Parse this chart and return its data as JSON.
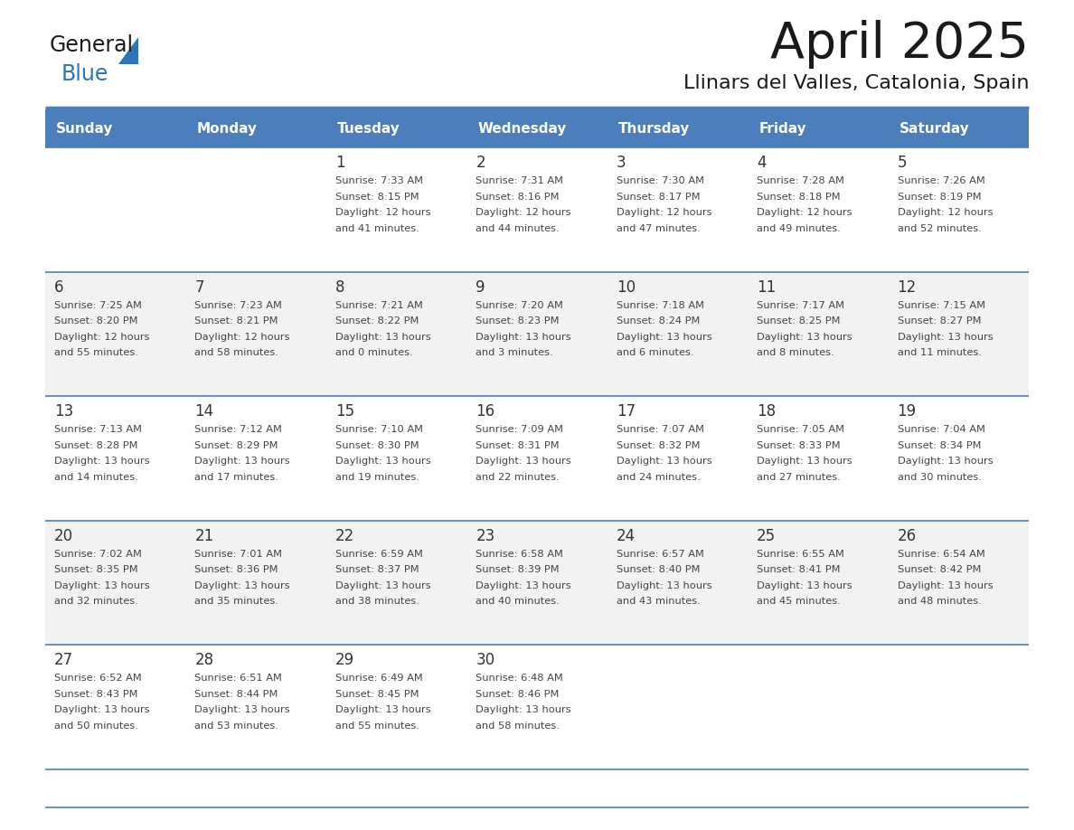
{
  "title": "April 2025",
  "subtitle": "Llinars del Valles, Catalonia, Spain",
  "days_of_week": [
    "Sunday",
    "Monday",
    "Tuesday",
    "Wednesday",
    "Thursday",
    "Friday",
    "Saturday"
  ],
  "header_bg": "#4C7EBC",
  "header_text_color": "#FFFFFF",
  "cell_bg_white": "#FFFFFF",
  "cell_bg_gray": "#F2F2F2",
  "row_border_color": "#4C7EBC",
  "day_number_color": "#333333",
  "cell_text_color": "#444444",
  "title_color": "#1a1a1a",
  "subtitle_color": "#1a1a1a",
  "logo_general_color": "#1a1a1a",
  "logo_blue_color": "#2E75B6",
  "weeks": [
    [
      {
        "day": null,
        "info": ""
      },
      {
        "day": null,
        "info": ""
      },
      {
        "day": 1,
        "info": "Sunrise: 7:33 AM\nSunset: 8:15 PM\nDaylight: 12 hours\nand 41 minutes."
      },
      {
        "day": 2,
        "info": "Sunrise: 7:31 AM\nSunset: 8:16 PM\nDaylight: 12 hours\nand 44 minutes."
      },
      {
        "day": 3,
        "info": "Sunrise: 7:30 AM\nSunset: 8:17 PM\nDaylight: 12 hours\nand 47 minutes."
      },
      {
        "day": 4,
        "info": "Sunrise: 7:28 AM\nSunset: 8:18 PM\nDaylight: 12 hours\nand 49 minutes."
      },
      {
        "day": 5,
        "info": "Sunrise: 7:26 AM\nSunset: 8:19 PM\nDaylight: 12 hours\nand 52 minutes."
      }
    ],
    [
      {
        "day": 6,
        "info": "Sunrise: 7:25 AM\nSunset: 8:20 PM\nDaylight: 12 hours\nand 55 minutes."
      },
      {
        "day": 7,
        "info": "Sunrise: 7:23 AM\nSunset: 8:21 PM\nDaylight: 12 hours\nand 58 minutes."
      },
      {
        "day": 8,
        "info": "Sunrise: 7:21 AM\nSunset: 8:22 PM\nDaylight: 13 hours\nand 0 minutes."
      },
      {
        "day": 9,
        "info": "Sunrise: 7:20 AM\nSunset: 8:23 PM\nDaylight: 13 hours\nand 3 minutes."
      },
      {
        "day": 10,
        "info": "Sunrise: 7:18 AM\nSunset: 8:24 PM\nDaylight: 13 hours\nand 6 minutes."
      },
      {
        "day": 11,
        "info": "Sunrise: 7:17 AM\nSunset: 8:25 PM\nDaylight: 13 hours\nand 8 minutes."
      },
      {
        "day": 12,
        "info": "Sunrise: 7:15 AM\nSunset: 8:27 PM\nDaylight: 13 hours\nand 11 minutes."
      }
    ],
    [
      {
        "day": 13,
        "info": "Sunrise: 7:13 AM\nSunset: 8:28 PM\nDaylight: 13 hours\nand 14 minutes."
      },
      {
        "day": 14,
        "info": "Sunrise: 7:12 AM\nSunset: 8:29 PM\nDaylight: 13 hours\nand 17 minutes."
      },
      {
        "day": 15,
        "info": "Sunrise: 7:10 AM\nSunset: 8:30 PM\nDaylight: 13 hours\nand 19 minutes."
      },
      {
        "day": 16,
        "info": "Sunrise: 7:09 AM\nSunset: 8:31 PM\nDaylight: 13 hours\nand 22 minutes."
      },
      {
        "day": 17,
        "info": "Sunrise: 7:07 AM\nSunset: 8:32 PM\nDaylight: 13 hours\nand 24 minutes."
      },
      {
        "day": 18,
        "info": "Sunrise: 7:05 AM\nSunset: 8:33 PM\nDaylight: 13 hours\nand 27 minutes."
      },
      {
        "day": 19,
        "info": "Sunrise: 7:04 AM\nSunset: 8:34 PM\nDaylight: 13 hours\nand 30 minutes."
      }
    ],
    [
      {
        "day": 20,
        "info": "Sunrise: 7:02 AM\nSunset: 8:35 PM\nDaylight: 13 hours\nand 32 minutes."
      },
      {
        "day": 21,
        "info": "Sunrise: 7:01 AM\nSunset: 8:36 PM\nDaylight: 13 hours\nand 35 minutes."
      },
      {
        "day": 22,
        "info": "Sunrise: 6:59 AM\nSunset: 8:37 PM\nDaylight: 13 hours\nand 38 minutes."
      },
      {
        "day": 23,
        "info": "Sunrise: 6:58 AM\nSunset: 8:39 PM\nDaylight: 13 hours\nand 40 minutes."
      },
      {
        "day": 24,
        "info": "Sunrise: 6:57 AM\nSunset: 8:40 PM\nDaylight: 13 hours\nand 43 minutes."
      },
      {
        "day": 25,
        "info": "Sunrise: 6:55 AM\nSunset: 8:41 PM\nDaylight: 13 hours\nand 45 minutes."
      },
      {
        "day": 26,
        "info": "Sunrise: 6:54 AM\nSunset: 8:42 PM\nDaylight: 13 hours\nand 48 minutes."
      }
    ],
    [
      {
        "day": 27,
        "info": "Sunrise: 6:52 AM\nSunset: 8:43 PM\nDaylight: 13 hours\nand 50 minutes."
      },
      {
        "day": 28,
        "info": "Sunrise: 6:51 AM\nSunset: 8:44 PM\nDaylight: 13 hours\nand 53 minutes."
      },
      {
        "day": 29,
        "info": "Sunrise: 6:49 AM\nSunset: 8:45 PM\nDaylight: 13 hours\nand 55 minutes."
      },
      {
        "day": 30,
        "info": "Sunrise: 6:48 AM\nSunset: 8:46 PM\nDaylight: 13 hours\nand 58 minutes."
      },
      {
        "day": null,
        "info": ""
      },
      {
        "day": null,
        "info": ""
      },
      {
        "day": null,
        "info": ""
      }
    ]
  ]
}
